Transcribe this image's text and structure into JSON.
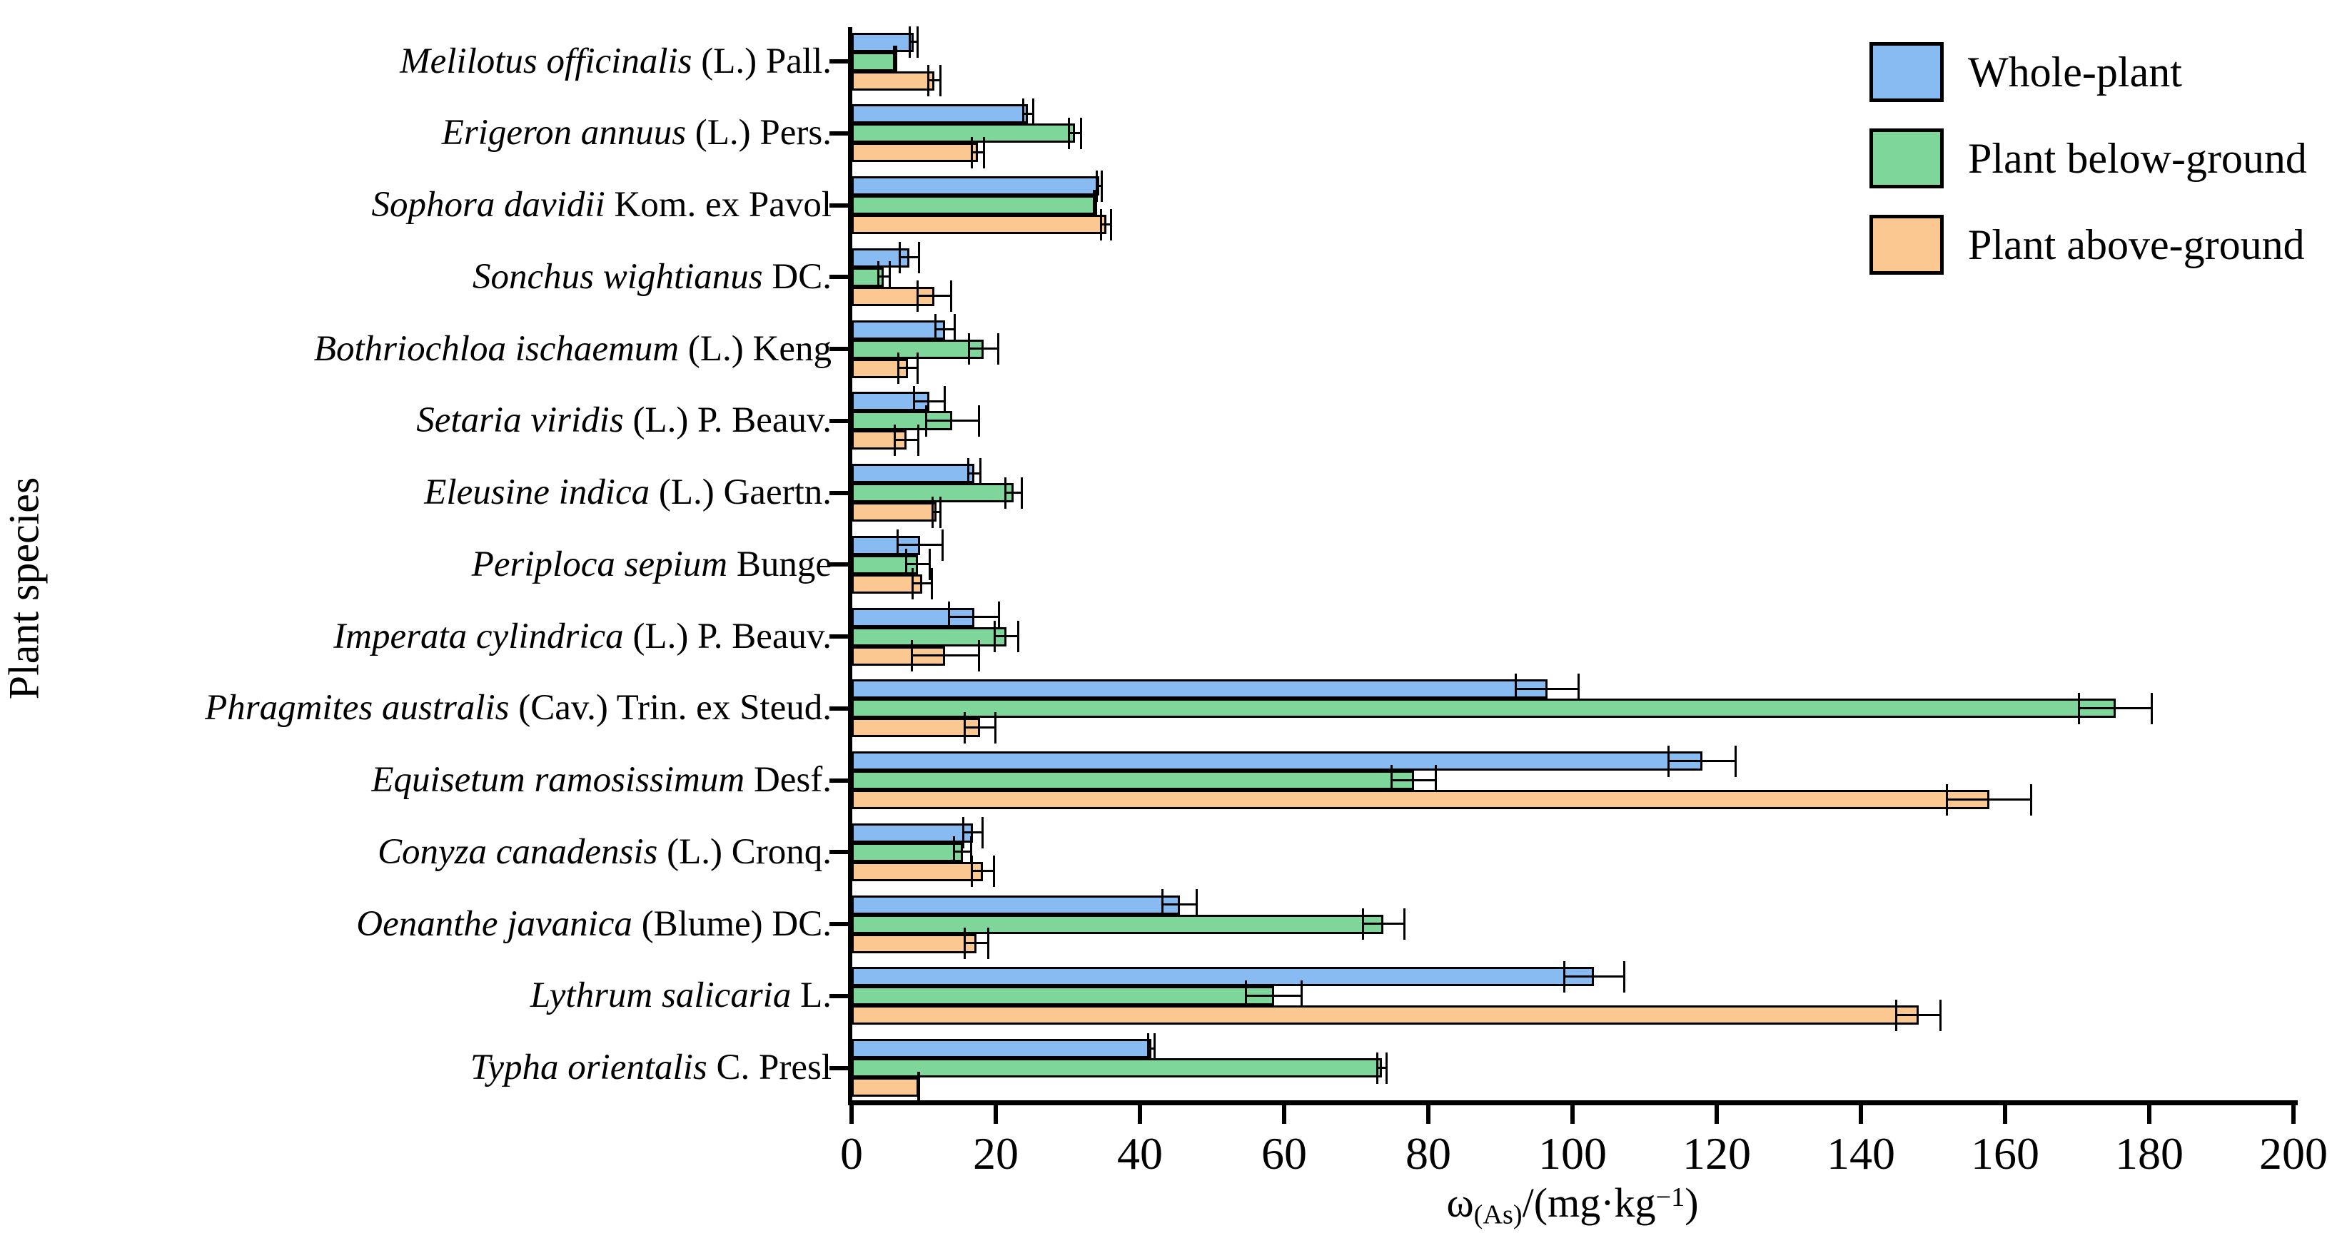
{
  "axes": {
    "y_title": "Plant species",
    "x_title_parts": {
      "omega": "ω",
      "sub": "(As)",
      "mid": "/(mg·kg",
      "sup": "−1",
      "end": ")"
    },
    "x_ticks": [
      0,
      20,
      40,
      60,
      80,
      100,
      120,
      140,
      160,
      180,
      200
    ],
    "x_max": 200
  },
  "legend": {
    "items": [
      {
        "label": "Whole-plant",
        "color": "#89BBF3"
      },
      {
        "label": "Plant below-ground",
        "color": "#7ED69B"
      },
      {
        "label": "Plant above-ground",
        "color": "#FCC892"
      }
    ]
  },
  "rows": [
    {
      "species": "Melilotus officinalis",
      "authority": "(L.) Pall."
    },
    {
      "species": "Erigeron annuus",
      "authority": "(L.) Pers."
    },
    {
      "species": "Sophora davidii",
      "authority": "Kom. ex Pavol"
    },
    {
      "species": "Sonchus wightianus",
      "authority": "DC."
    },
    {
      "species": "Bothriochloa ischaemum",
      "authority": "(L.) Keng"
    },
    {
      "species": "Setaria viridis",
      "authority": "(L.) P. Beauv."
    },
    {
      "species": "Eleusine indica",
      "authority": "(L.) Gaertn."
    },
    {
      "species": "Periploca sepium",
      "authority": "Bunge"
    },
    {
      "species": "Imperata cylindrica",
      "authority": "(L.) P. Beauv."
    },
    {
      "species": "Phragmites australis",
      "authority": "(Cav.) Trin. ex Steud."
    },
    {
      "species": "Equisetum ramosissimum",
      "authority": "Desf."
    },
    {
      "species": "Conyza canadensis",
      "authority": "(L.) Cronq."
    },
    {
      "species": "Oenanthe javanica",
      "authority": "(Blume) DC."
    },
    {
      "species": "Lythrum salicaria",
      "authority": "L."
    },
    {
      "species": "Typha orientalis",
      "authority": "C. Presl"
    }
  ],
  "chart_data": {
    "type": "bar",
    "orientation": "horizontal",
    "title": "",
    "xlabel": "ω(As)/(mg·kg⁻¹)",
    "ylabel": "Plant species",
    "xlim": [
      0,
      200
    ],
    "grid": false,
    "legend_position": "top-right",
    "error_bars": true,
    "categories": [
      "Melilotus officinalis (L.) Pall.",
      "Erigeron annuus (L.) Pers.",
      "Sophora davidii Kom. ex Pavol",
      "Sonchus wightianus DC.",
      "Bothriochloa ischaemum (L.) Keng",
      "Setaria viridis (L.) P. Beauv.",
      "Eleusine indica (L.) Gaertn.",
      "Periploca sepium Bunge",
      "Imperata cylindrica (L.) P. Beauv.",
      "Phragmites australis (Cav.) Trin. ex Steud.",
      "Equisetum ramosissimum Desf.",
      "Conyza canadensis (L.) Cronq.",
      "Oenanthe javanica (Blume) DC.",
      "Lythrum salicaria L.",
      "Typha orientalis C. Presl"
    ],
    "series": [
      {
        "name": "Whole-plant",
        "color": "#89BBF3",
        "values": [
          8.6,
          24.5,
          34.4,
          8.0,
          13.0,
          10.8,
          17.0,
          9.5,
          17.0,
          96.5,
          118.0,
          16.8,
          45.5,
          103.0,
          41.6
        ],
        "errors": [
          0.7,
          0.8,
          0.5,
          1.5,
          1.5,
          2.3,
          1.0,
          3.3,
          3.6,
          4.5,
          4.8,
          1.5,
          2.5,
          4.3,
          0.6
        ]
      },
      {
        "name": "Plant below-ground",
        "color": "#7ED69B",
        "values": [
          6.0,
          31.0,
          33.8,
          4.5,
          18.3,
          14.0,
          22.5,
          9.2,
          21.5,
          175.3,
          78.0,
          15.4,
          73.8,
          58.6,
          73.6
        ],
        "errors": [
          0.3,
          1.0,
          0.3,
          0.9,
          2.2,
          3.8,
          1.3,
          1.8,
          1.8,
          5.2,
          3.2,
          1.3,
          3.0,
          4.0,
          0.8
        ]
      },
      {
        "name": "Plant above-ground",
        "color": "#FCC892",
        "values": [
          11.5,
          17.5,
          35.3,
          11.5,
          7.8,
          7.6,
          11.8,
          9.8,
          13.0,
          17.8,
          157.8,
          18.2,
          17.3,
          148.0,
          9.3
        ],
        "errors": [
          1.0,
          1.0,
          0.8,
          2.5,
          1.5,
          1.8,
          0.7,
          1.5,
          4.8,
          2.3,
          6.0,
          1.7,
          1.8,
          3.2,
          0.2
        ]
      }
    ]
  }
}
